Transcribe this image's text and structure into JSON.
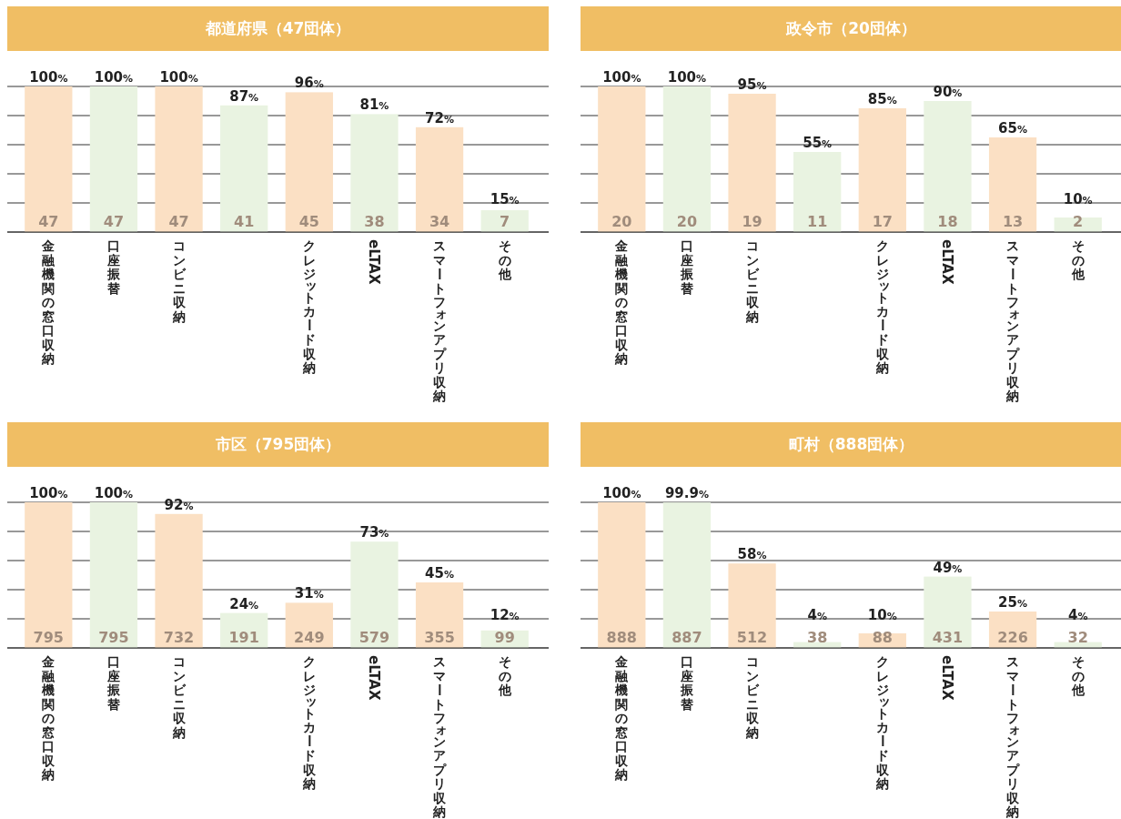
{
  "chart_data": [
    {
      "type": "bar",
      "title": "都道府県（47団体）",
      "categories": [
        "金融機関の窓口収納",
        "口座振替",
        "コンビニ収納",
        null,
        "クレジットカード収納",
        "eLTAX",
        "スマートフォンアプリ収納",
        "その他"
      ],
      "values": [
        100,
        100,
        100,
        87,
        96,
        81,
        72,
        15
      ],
      "value_labels": [
        "100%",
        "100%",
        "100%",
        "87%",
        "96%",
        "81%",
        "72%",
        "15%"
      ],
      "colors": [
        "#fbe0c4",
        "#e9f3e1",
        "#fbe0c4",
        "#e9f3e1",
        "#fbe0c4",
        "#e9f3e1",
        "#fbe0c4",
        "#e9f3e1"
      ],
      "ylim": [
        0,
        100
      ],
      "yticks": [
        {
          "value": 0,
          "label": null
        },
        {
          "value": 20,
          "label": null
        },
        {
          "value": 40,
          "label": null
        },
        {
          "value": 60,
          "label": null
        },
        {
          "value": 80,
          "label": null
        },
        {
          "value": 100,
          "label": null
        }
      ],
      "grid": "y",
      "tick_labels": "x",
      "annotations": [
        "47",
        "47",
        "47",
        "41",
        "45",
        "38",
        "34",
        "7"
      ]
    },
    {
      "type": "bar",
      "title": "政令市（20団体）",
      "categories": [
        "金融機関の窓口収納",
        "口座振替",
        "コンビニ収納",
        null,
        "クレジットカード収納",
        "eLTAX",
        "スマートフォンアプリ収納",
        "その他"
      ],
      "values": [
        100,
        100,
        95,
        55,
        85,
        90,
        65,
        10
      ],
      "value_labels": [
        "100%",
        "100%",
        "95%",
        "55%",
        "85%",
        "90%",
        "65%",
        "10%"
      ],
      "colors": [
        "#fbe0c4",
        "#e9f3e1",
        "#fbe0c4",
        "#e9f3e1",
        "#fbe0c4",
        "#e9f3e1",
        "#fbe0c4",
        "#e9f3e1"
      ],
      "ylim": [
        0,
        100
      ],
      "yticks": [
        {
          "value": 0,
          "label": null
        },
        {
          "value": 20,
          "label": null
        },
        {
          "value": 40,
          "label": null
        },
        {
          "value": 60,
          "label": null
        },
        {
          "value": 80,
          "label": null
        },
        {
          "value": 100,
          "label": null
        }
      ],
      "grid": "y",
      "tick_labels": "x",
      "annotations": [
        "20",
        "20",
        "19",
        "11",
        "17",
        "18",
        "13",
        "2"
      ]
    },
    {
      "type": "bar",
      "title": "市区（795団体）",
      "categories": [
        "金融機関の窓口収納",
        "口座振替",
        "コンビニ収納",
        null,
        "クレジットカード収納",
        "eLTAX",
        "スマートフォンアプリ収納",
        "その他"
      ],
      "values": [
        100,
        100,
        92,
        24,
        31,
        73,
        45,
        12
      ],
      "value_labels": [
        "100%",
        "100%",
        "92%",
        "24%",
        "31%",
        "73%",
        "45%",
        "12%"
      ],
      "colors": [
        "#fbe0c4",
        "#e9f3e1",
        "#fbe0c4",
        "#e9f3e1",
        "#fbe0c4",
        "#e9f3e1",
        "#fbe0c4",
        "#e9f3e1"
      ],
      "ylim": [
        0,
        100
      ],
      "yticks": [
        {
          "value": 0,
          "label": null
        },
        {
          "value": 20,
          "label": null
        },
        {
          "value": 40,
          "label": null
        },
        {
          "value": 60,
          "label": null
        },
        {
          "value": 80,
          "label": null
        },
        {
          "value": 100,
          "label": null
        }
      ],
      "grid": "y",
      "tick_labels": "x",
      "annotations": [
        "795",
        "795",
        "732",
        "191",
        "249",
        "579",
        "355",
        "99"
      ]
    },
    {
      "type": "bar",
      "title": "町村（888団体）",
      "categories": [
        "金融機関の窓口収納",
        "口座振替",
        "コンビニ収納",
        null,
        "クレジットカード収納",
        "eLTAX",
        "スマートフォンアプリ収納",
        "その他"
      ],
      "values": [
        100,
        99.9,
        58,
        4,
        10,
        49,
        25,
        4
      ],
      "value_labels": [
        "100%",
        "99.9%",
        "58%",
        "4%",
        "10%",
        "49%",
        "25%",
        "4%"
      ],
      "colors": [
        "#fbe0c4",
        "#e9f3e1",
        "#fbe0c4",
        "#e9f3e1",
        "#fbe0c4",
        "#e9f3e1",
        "#fbe0c4",
        "#e9f3e1"
      ],
      "ylim": [
        0,
        100
      ],
      "yticks": [
        {
          "value": 0,
          "label": null
        },
        {
          "value": 20,
          "label": null
        },
        {
          "value": 40,
          "label": null
        },
        {
          "value": 60,
          "label": null
        },
        {
          "value": 80,
          "label": null
        },
        {
          "value": 100,
          "label": null
        }
      ],
      "grid": "y",
      "tick_labels": "x",
      "annotations": [
        "888",
        "887",
        "512",
        "38",
        "88",
        "431",
        "226",
        "32"
      ]
    }
  ]
}
